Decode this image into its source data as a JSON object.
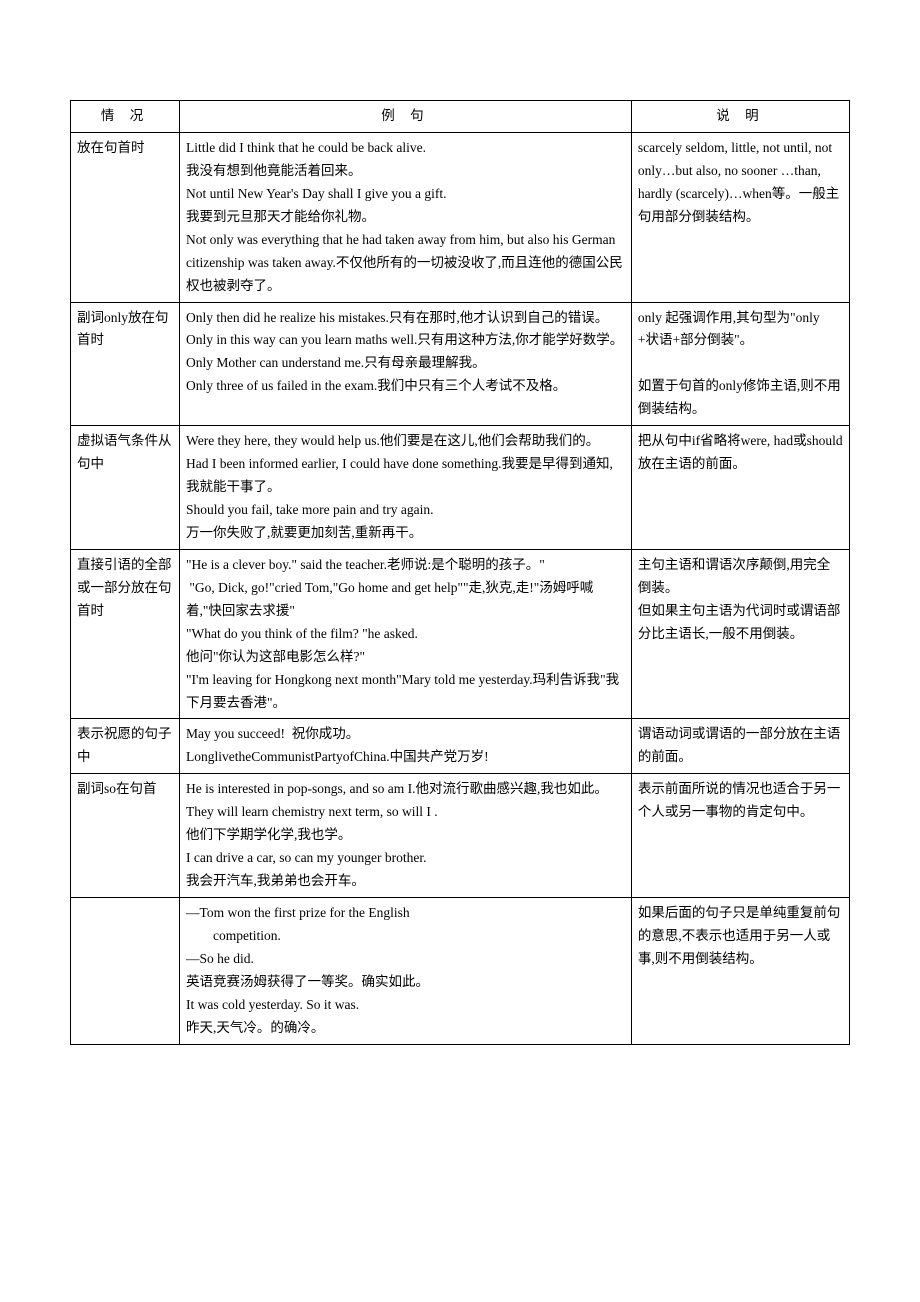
{
  "table": {
    "border_color": "#000000",
    "background_color": "#ffffff",
    "text_color": "#000000",
    "font_size": 13.5,
    "columns": [
      {
        "width_pct": 14,
        "header": "情 况"
      },
      {
        "width_pct": 58,
        "header": "例      句"
      },
      {
        "width_pct": 28,
        "header": "说   明"
      }
    ],
    "rows": [
      {
        "col1": "放在句首时",
        "col2": "Little did I think that he could be back alive.\n我没有想到他竟能活着回来。\nNot until New Year's Day shall I give you a gift.\n我要到元旦那天才能给你礼物。\nNot only was everything that he had taken away from him, but also his German citizenship was taken away.不仅他所有的一切被没收了,而且连他的德国公民权也被剥夺了。",
        "col3": "scarcely seldom, little, not until, not only…but also, no sooner …than, hardly (scarcely)…when等。一般主句用部分倒装结构。"
      },
      {
        "col1": "副词only放在句首时",
        "col2": "Only then did he realize his mistakes.只有在那时,他才认识到自己的错误。\nOnly in this way can you learn maths well.只有用这种方法,你才能学好数学。\nOnly Mother can understand me.只有母亲最理解我。\nOnly three of us failed in the exam.我们中只有三个人考试不及格。",
        "col3": "only 起强调作用,其句型为\"only +状语+部分倒装\"。\n\n如置于句首的only修饰主语,则不用倒装结构。"
      },
      {
        "col1": "虚拟语气条件从句中",
        "col2": "Were they here, they would help us.他们要是在这儿,他们会帮助我们的。\nHad I been informed earlier, I could have done something.我要是早得到通知,我就能干事了。\nShould you fail, take more pain and try again.\n万一你失败了,就要更加刻苦,重新再干。",
        "col3": "把从句中if省略将were, had或should 放在主语的前面。"
      },
      {
        "col1": "直接引语的全部或一部分放在句首时",
        "col2": "\"He is a clever boy.\" said the teacher.老师说:是个聪明的孩子。\"\n \"Go, Dick, go!\"cried Tom,\"Go home and get help\"\"走,狄克,走!\"汤姆呼喊着,\"快回家去求援\"\n\"What do you think of the film? \"he asked.\n他问\"你认为这部电影怎么样?\"\n\"I'm leaving for Hongkong next month\"Mary told me yesterday.玛利告诉我\"我下月要去香港\"。",
        "col3": "主句主语和谓语次序颠倒,用完全倒装。\n但如果主句主语为代词时或谓语部分比主语长,一般不用倒装。"
      },
      {
        "col1": "表示祝愿的句子中",
        "col2": "May you succeed!  祝你成功。\nLonglivetheCommunistPartyofChina.中国共产党万岁!",
        "col3": "谓语动词或谓语的一部分放在主语的前面。"
      },
      {
        "col1": "副词so在句首",
        "col2": "He is interested in pop-songs, and so am I.他对流行歌曲感兴趣,我也如此。\nThey will learn chemistry next term, so will I .\n他们下学期学化学,我也学。\nI can drive a car, so can my younger brother.\n我会开汽车,我弟弟也会开车。",
        "col3": "表示前面所说的情况也适合于另一个人或另一事物的肯定句中。"
      },
      {
        "col1": "",
        "col2": "—Tom won the first prize for the English\n　　competition.\n—So he did.\n英语竞赛汤姆获得了一等奖。确实如此。\nIt was cold yesterday. So it was.\n昨天,天气冷。的确冷。",
        "col3": "如果后面的句子只是单纯重复前句的意思,不表示也适用于另一人或事,则不用倒装结构。"
      }
    ]
  }
}
